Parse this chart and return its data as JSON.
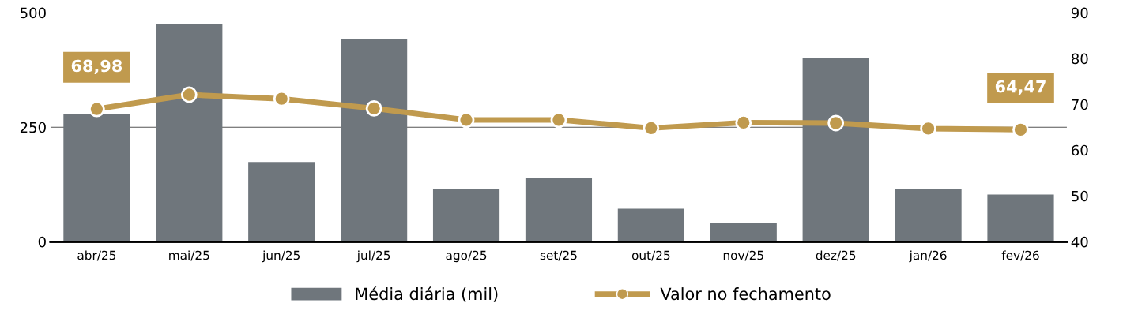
{
  "chart_data": {
    "type": "bar",
    "categories": [
      "abr/25",
      "mai/25",
      "jun/25",
      "jul/25",
      "ago/25",
      "set/25",
      "out/25",
      "nov/25",
      "dez/25",
      "jan/26",
      "fev/26"
    ],
    "series": [
      {
        "name": "Média diária (mil)",
        "color": "#6f767c",
        "values": [
          278,
          476,
          174,
          443,
          114,
          140,
          72,
          41,
          402,
          116,
          103
        ]
      },
      {
        "name": "Valor no fechamento",
        "type": "line",
        "axis": "y2",
        "color": "#c09a4e",
        "marker": "circle",
        "line_style": "solid",
        "values": [
          68.98,
          72.1,
          71.2,
          69.1,
          66.6,
          66.6,
          64.8,
          66.0,
          65.9,
          64.7,
          64.47
        ],
        "value_labels": [
          "68,98",
          null,
          null,
          null,
          null,
          null,
          null,
          null,
          null,
          null,
          "64,47"
        ]
      }
    ],
    "ylim": [
      0,
      500
    ],
    "yticks": [
      0,
      250,
      500
    ],
    "y2lim": [
      40,
      90
    ],
    "y2ticks": [
      40,
      50,
      60,
      70,
      80,
      90
    ],
    "grid": "y",
    "legend": "bottom"
  }
}
